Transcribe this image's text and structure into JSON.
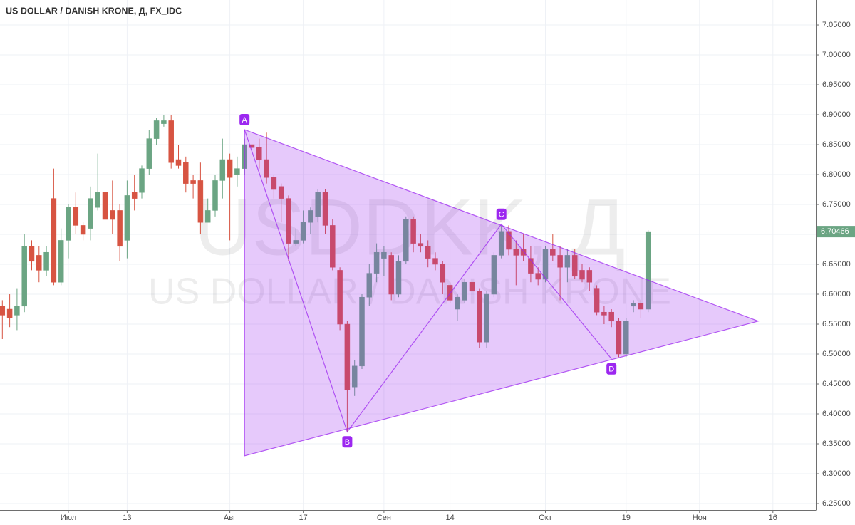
{
  "chart_data": {
    "type": "candlestick",
    "title": "US DOLLAR / DANISH KRONE, Д, FX_IDC",
    "watermark": "USDDKK, Д",
    "watermark_subtitle": "US DOLLAR / DANISH KRONE",
    "up_color": "#6ba583",
    "down_color": "#d75442",
    "pattern_color": "#9c27f0",
    "grid": true,
    "ylim": [
      6.2393,
      7.0917
    ],
    "yticks": [
      {
        "value": 6.25,
        "label": "6.25000"
      },
      {
        "value": 6.3,
        "label": "6.30000"
      },
      {
        "value": 6.35,
        "label": "6.35000"
      },
      {
        "value": 6.4,
        "label": "6.40000"
      },
      {
        "value": 6.45,
        "label": "6.45000"
      },
      {
        "value": 6.5,
        "label": "6.50000"
      },
      {
        "value": 6.55,
        "label": "6.55000"
      },
      {
        "value": 6.6,
        "label": "6.60000"
      },
      {
        "value": 6.65,
        "label": "6.65000"
      },
      {
        "value": 6.7,
        "label": "6.70000"
      },
      {
        "value": 6.75,
        "label": "6.75000"
      },
      {
        "value": 6.8,
        "label": "6.80000"
      },
      {
        "value": 6.85,
        "label": "6.85000"
      },
      {
        "value": 6.9,
        "label": "6.90000"
      },
      {
        "value": 6.95,
        "label": "6.95000"
      },
      {
        "value": 7.0,
        "label": "7.00000"
      },
      {
        "value": 7.05,
        "label": "7.05000"
      }
    ],
    "categories": [
      null,
      null,
      null,
      null,
      null,
      null,
      null,
      null,
      null,
      "Июл",
      null,
      null,
      null,
      null,
      null,
      null,
      null,
      "13",
      null,
      null,
      null,
      null,
      null,
      null,
      null,
      null,
      null,
      null,
      null,
      null,
      null,
      "Авг",
      null,
      null,
      null,
      null,
      null,
      null,
      null,
      null,
      null,
      "17",
      null,
      null,
      null,
      null,
      null,
      null,
      null,
      null,
      null,
      null,
      "Сен",
      null,
      null,
      null,
      null,
      null,
      null,
      null,
      null,
      "14",
      null,
      null,
      null,
      null,
      null,
      null,
      null,
      null,
      null,
      null,
      null,
      null,
      "Окт",
      null,
      null,
      null,
      null,
      null,
      null,
      null,
      null,
      null,
      null,
      "19",
      null,
      null,
      null,
      null,
      null,
      null,
      null,
      null,
      null,
      "Ноя",
      null,
      null,
      null,
      null,
      null,
      null,
      null,
      null,
      null,
      "16",
      null,
      null,
      null,
      null,
      null
    ],
    "open": [
      6.58,
      6.575,
      6.565,
      6.58,
      6.68,
      6.665,
      6.64,
      6.76,
      6.62,
      6.69,
      6.745,
      6.715,
      6.71,
      6.745,
      6.77,
      6.74,
      6.74,
      6.69,
      6.77,
      6.77,
      6.81,
      6.86,
      6.885,
      6.89,
      6.825,
      6.82,
      6.79,
      6.79,
      6.72,
      6.74,
      6.79,
      6.825,
      6.8,
      6.81,
      6.85,
      6.845,
      6.825,
      6.795,
      6.78,
      6.76,
      6.685,
      6.69,
      6.72,
      6.73,
      6.77,
      6.715,
      6.64,
      6.55,
      6.445,
      6.48,
      6.595,
      6.635,
      6.66,
      6.665,
      6.6,
      6.655,
      6.725,
      6.685,
      6.68,
      6.66,
      6.65,
      6.615,
      6.575,
      6.59,
      6.62,
      6.605,
      6.52,
      6.6,
      6.665,
      6.705,
      6.675,
      6.675,
      6.66,
      6.635,
      6.625,
      6.675,
      6.665,
      6.645,
      6.665,
      6.64,
      6.64,
      6.61,
      6.57,
      6.57,
      6.555,
      6.5,
      6.58,
      6.585,
      6.575,
      null,
      null,
      null,
      null,
      null,
      null,
      null,
      null,
      null,
      null,
      null,
      null,
      null,
      null,
      null,
      null,
      null,
      null,
      null,
      null,
      null,
      null
    ],
    "high": [
      6.59,
      6.6,
      6.61,
      6.7,
      6.69,
      6.68,
      6.68,
      6.81,
      6.71,
      6.75,
      6.77,
      6.72,
      6.78,
      6.835,
      6.835,
      6.79,
      6.75,
      6.79,
      6.8,
      6.815,
      6.875,
      6.895,
      6.9,
      6.9,
      6.85,
      6.83,
      6.8,
      6.82,
      6.76,
      6.8,
      6.86,
      6.835,
      6.83,
      6.86,
      6.875,
      6.86,
      6.87,
      6.8,
      6.785,
      6.765,
      6.71,
      6.74,
      6.745,
      6.775,
      6.775,
      6.725,
      6.645,
      6.555,
      6.49,
      6.6,
      6.65,
      6.685,
      6.68,
      6.67,
      6.665,
      6.73,
      6.73,
      6.7,
      6.69,
      6.67,
      6.655,
      6.62,
      6.6,
      6.625,
      6.625,
      6.61,
      6.605,
      6.67,
      6.715,
      6.715,
      6.69,
      6.7,
      6.68,
      6.645,
      6.68,
      6.7,
      6.68,
      6.675,
      6.675,
      6.65,
      6.645,
      6.615,
      6.58,
      6.575,
      6.56,
      6.56,
      6.59,
      6.59,
      6.707,
      null,
      null,
      null,
      null,
      null,
      null,
      null,
      null,
      null,
      null,
      null,
      null,
      null,
      null,
      null,
      null,
      null,
      null,
      null,
      null,
      null,
      null
    ],
    "low": [
      6.525,
      6.545,
      6.54,
      6.57,
      6.64,
      6.62,
      6.63,
      6.615,
      6.615,
      6.66,
      6.7,
      6.69,
      6.69,
      6.74,
      6.71,
      6.7,
      6.655,
      6.66,
      6.74,
      6.76,
      6.8,
      6.85,
      6.88,
      6.81,
      6.81,
      6.77,
      6.76,
      6.7,
      6.72,
      6.73,
      6.76,
      6.69,
      6.78,
      6.8,
      6.84,
      6.81,
      6.785,
      6.76,
      6.72,
      6.655,
      6.68,
      6.685,
      6.7,
      6.72,
      6.7,
      6.64,
      6.54,
      6.37,
      6.43,
      6.475,
      6.58,
      6.62,
      6.63,
      6.59,
      6.595,
      6.65,
      6.67,
      6.67,
      6.645,
      6.64,
      6.6,
      6.585,
      6.555,
      6.585,
      6.59,
      6.51,
      6.51,
      6.595,
      6.66,
      6.665,
      6.615,
      6.655,
      6.62,
      6.615,
      6.62,
      6.655,
      6.59,
      6.62,
      6.625,
      6.62,
      6.605,
      6.565,
      6.55,
      6.545,
      6.495,
      6.495,
      6.57,
      6.56,
      6.57,
      null,
      null,
      null,
      null,
      null,
      null,
      null,
      null,
      null,
      null,
      null,
      null,
      null,
      null,
      null,
      null,
      null,
      null,
      null,
      null,
      null,
      null
    ],
    "close": [
      6.565,
      6.56,
      6.58,
      6.68,
      6.655,
      6.64,
      6.67,
      6.62,
      6.69,
      6.745,
      6.715,
      6.7,
      6.76,
      6.77,
      6.725,
      6.725,
      6.68,
      6.765,
      6.76,
      6.81,
      6.86,
      6.89,
      6.89,
      6.82,
      6.815,
      6.785,
      6.785,
      6.72,
      6.74,
      6.79,
      6.825,
      6.795,
      6.81,
      6.85,
      6.845,
      6.825,
      6.795,
      6.775,
      6.76,
      6.685,
      6.69,
      6.72,
      6.74,
      6.77,
      6.715,
      6.645,
      6.55,
      6.44,
      6.48,
      6.595,
      6.635,
      6.67,
      6.67,
      6.6,
      6.655,
      6.725,
      6.685,
      6.68,
      6.66,
      6.65,
      6.62,
      6.59,
      6.595,
      6.62,
      6.605,
      6.52,
      6.6,
      6.665,
      6.705,
      6.675,
      6.665,
      6.665,
      6.635,
      6.625,
      6.675,
      6.665,
      6.645,
      6.665,
      6.63,
      6.625,
      6.62,
      6.57,
      6.565,
      6.555,
      6.5,
      6.555,
      6.585,
      6.575,
      6.70466,
      null,
      null,
      null,
      null,
      null,
      null,
      null,
      null,
      null,
      null,
      null,
      null,
      null,
      null,
      null,
      null,
      null,
      null,
      null,
      null,
      null,
      null
    ],
    "triangle": [
      {
        "index": 33,
        "price": 6.875
      },
      {
        "index": 103,
        "price": 6.555
      },
      {
        "index": 33,
        "price": 6.33
      }
    ],
    "pattern_points": [
      {
        "label": "A",
        "index": 33,
        "price": 6.875
      },
      {
        "label": "B",
        "index": 47,
        "price": 6.37
      },
      {
        "label": "C",
        "index": 68,
        "price": 6.717
      },
      {
        "label": "D",
        "index": 83,
        "price": 6.492
      }
    ]
  }
}
